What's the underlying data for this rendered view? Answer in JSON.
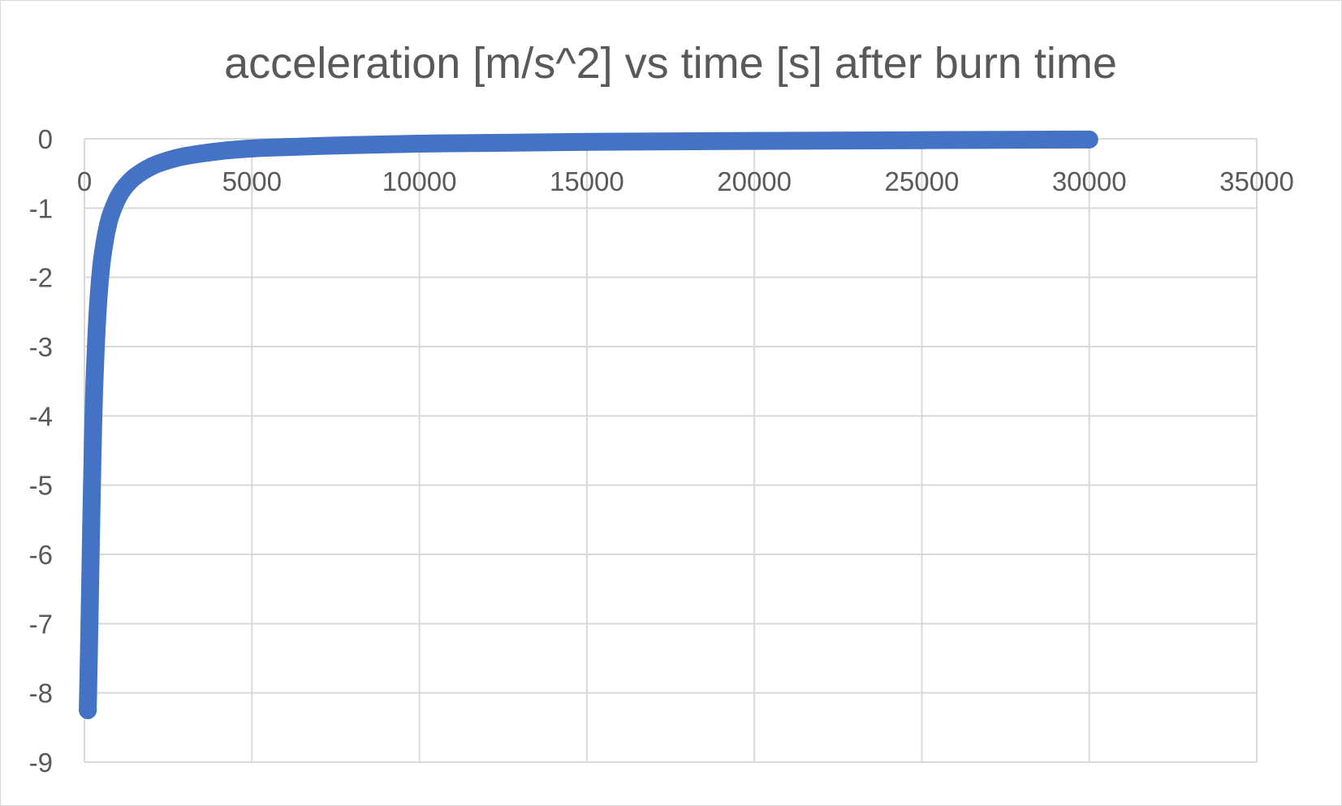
{
  "chart_data": {
    "type": "scatter",
    "title": "acceleration [m/s^2] vs time [s] after burn time",
    "xlabel": "",
    "ylabel": "",
    "xlim": [
      0,
      35000
    ],
    "ylim": [
      -9,
      0
    ],
    "x_ticks": [
      "0",
      "5000",
      "10000",
      "15000",
      "20000",
      "25000",
      "30000",
      "35000"
    ],
    "y_ticks": [
      "0",
      "-1",
      "-2",
      "-3",
      "-4",
      "-5",
      "-6",
      "-7",
      "-8",
      "-9"
    ],
    "grid": true,
    "legend": "none",
    "series": [
      {
        "color": "#4472c4",
        "x": [
          100,
          150,
          200,
          250,
          300,
          400,
          500,
          600,
          700,
          800,
          1000,
          1200,
          1500,
          2000,
          2500,
          3000,
          4000,
          5000,
          6000,
          8000,
          10000,
          12000,
          15000,
          20000,
          25000,
          30000
        ],
        "y": [
          -8.25,
          -7.0,
          -5.6,
          -4.4,
          -3.5,
          -2.45,
          -1.85,
          -1.5,
          -1.25,
          -1.08,
          -0.85,
          -0.7,
          -0.55,
          -0.4,
          -0.31,
          -0.25,
          -0.18,
          -0.14,
          -0.12,
          -0.09,
          -0.07,
          -0.06,
          -0.045,
          -0.03,
          -0.02,
          -0.01
        ]
      }
    ]
  }
}
